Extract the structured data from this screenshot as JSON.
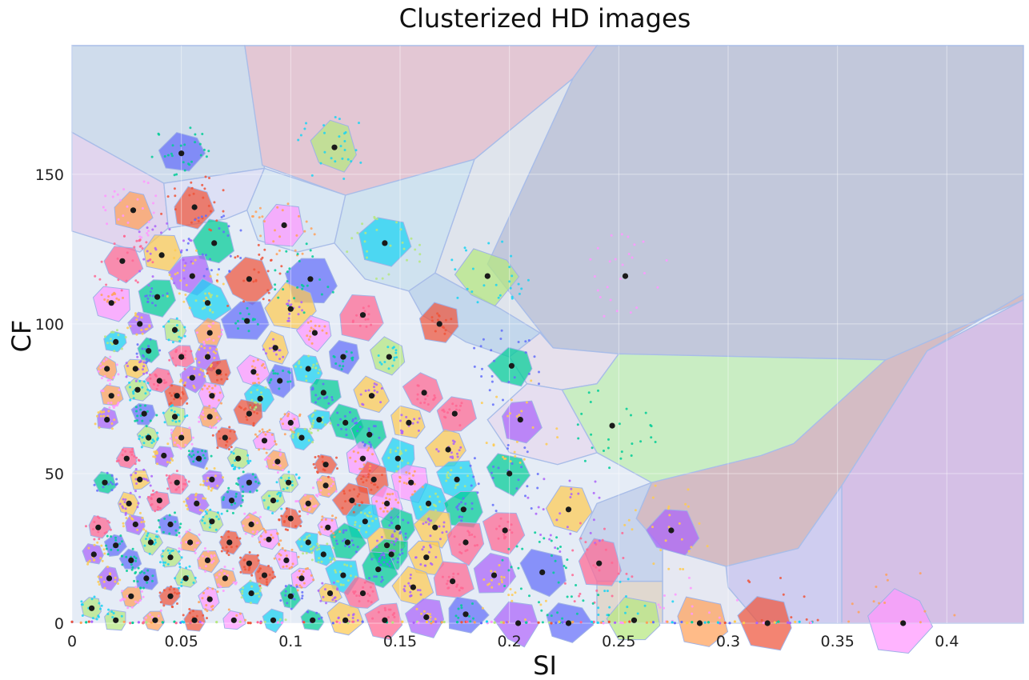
{
  "chart_data": {
    "type": "scatter",
    "title": "Clusterized HD images",
    "xlabel": "SI",
    "ylabel": "CF",
    "xlim": [
      0,
      0.435
    ],
    "ylim": [
      0,
      193
    ],
    "x_ticks": [
      0,
      0.05,
      0.1,
      0.15,
      0.2,
      0.25,
      0.3,
      0.35,
      0.4
    ],
    "x_tick_labels": [
      "0",
      "0.05",
      "0.1",
      "0.15",
      "0.2",
      "0.25",
      "0.3",
      "0.35",
      "0.4"
    ],
    "y_ticks": [
      0,
      50,
      100,
      150
    ],
    "y_tick_labels": [
      "0",
      "50",
      "100",
      "150"
    ],
    "grid": true,
    "legend": "none",
    "centroids": [
      [
        0.05,
        157
      ],
      [
        0.12,
        159
      ],
      [
        0.028,
        138
      ],
      [
        0.056,
        139
      ],
      [
        0.097,
        133
      ],
      [
        0.143,
        127
      ],
      [
        0.065,
        127
      ],
      [
        0.041,
        123
      ],
      [
        0.023,
        121
      ],
      [
        0.055,
        116
      ],
      [
        0.109,
        115
      ],
      [
        0.19,
        116
      ],
      [
        0.253,
        116
      ],
      [
        0.081,
        115
      ],
      [
        0.018,
        107
      ],
      [
        0.062,
        107
      ],
      [
        0.039,
        109
      ],
      [
        0.1,
        105
      ],
      [
        0.133,
        103
      ],
      [
        0.031,
        100
      ],
      [
        0.08,
        101
      ],
      [
        0.047,
        98
      ],
      [
        0.063,
        97
      ],
      [
        0.168,
        100
      ],
      [
        0.111,
        97
      ],
      [
        0.02,
        94
      ],
      [
        0.035,
        91
      ],
      [
        0.093,
        92
      ],
      [
        0.05,
        89
      ],
      [
        0.062,
        89
      ],
      [
        0.124,
        89
      ],
      [
        0.145,
        89
      ],
      [
        0.016,
        85
      ],
      [
        0.067,
        84
      ],
      [
        0.083,
        84
      ],
      [
        0.108,
        85
      ],
      [
        0.201,
        86
      ],
      [
        0.029,
        85
      ],
      [
        0.04,
        81
      ],
      [
        0.055,
        82
      ],
      [
        0.095,
        81
      ],
      [
        0.03,
        78
      ],
      [
        0.018,
        76
      ],
      [
        0.048,
        76
      ],
      [
        0.064,
        76
      ],
      [
        0.086,
        75
      ],
      [
        0.115,
        77
      ],
      [
        0.137,
        76
      ],
      [
        0.161,
        77
      ],
      [
        0.016,
        68
      ],
      [
        0.033,
        70
      ],
      [
        0.047,
        69
      ],
      [
        0.063,
        69
      ],
      [
        0.081,
        70
      ],
      [
        0.1,
        67
      ],
      [
        0.113,
        68
      ],
      [
        0.125,
        67
      ],
      [
        0.154,
        67
      ],
      [
        0.175,
        70
      ],
      [
        0.205,
        68
      ],
      [
        0.247,
        66
      ],
      [
        0.035,
        62
      ],
      [
        0.05,
        62
      ],
      [
        0.07,
        62
      ],
      [
        0.088,
        61
      ],
      [
        0.105,
        62
      ],
      [
        0.136,
        63
      ],
      [
        0.172,
        58
      ],
      [
        0.025,
        55
      ],
      [
        0.042,
        56
      ],
      [
        0.058,
        55
      ],
      [
        0.076,
        55
      ],
      [
        0.094,
        54
      ],
      [
        0.116,
        53
      ],
      [
        0.133,
        55
      ],
      [
        0.149,
        55
      ],
      [
        0.015,
        47
      ],
      [
        0.031,
        48
      ],
      [
        0.048,
        47
      ],
      [
        0.064,
        48
      ],
      [
        0.081,
        47
      ],
      [
        0.099,
        47
      ],
      [
        0.116,
        46
      ],
      [
        0.138,
        48
      ],
      [
        0.155,
        47
      ],
      [
        0.176,
        48
      ],
      [
        0.2,
        50
      ],
      [
        0.026,
        40
      ],
      [
        0.04,
        41
      ],
      [
        0.057,
        40
      ],
      [
        0.073,
        41
      ],
      [
        0.092,
        41
      ],
      [
        0.108,
        40
      ],
      [
        0.128,
        41
      ],
      [
        0.144,
        40
      ],
      [
        0.163,
        40
      ],
      [
        0.179,
        38
      ],
      [
        0.227,
        38
      ],
      [
        0.012,
        32
      ],
      [
        0.029,
        33
      ],
      [
        0.045,
        33
      ],
      [
        0.064,
        34
      ],
      [
        0.082,
        33
      ],
      [
        0.1,
        35
      ],
      [
        0.117,
        32
      ],
      [
        0.134,
        34
      ],
      [
        0.149,
        32
      ],
      [
        0.166,
        32
      ],
      [
        0.198,
        31
      ],
      [
        0.274,
        31
      ],
      [
        0.02,
        26
      ],
      [
        0.036,
        27
      ],
      [
        0.054,
        27
      ],
      [
        0.072,
        27
      ],
      [
        0.09,
        28
      ],
      [
        0.108,
        27
      ],
      [
        0.126,
        27
      ],
      [
        0.144,
        26
      ],
      [
        0.18,
        27
      ],
      [
        0.01,
        23
      ],
      [
        0.027,
        21
      ],
      [
        0.045,
        22
      ],
      [
        0.062,
        21
      ],
      [
        0.081,
        20
      ],
      [
        0.098,
        21
      ],
      [
        0.115,
        23
      ],
      [
        0.146,
        23
      ],
      [
        0.162,
        22
      ],
      [
        0.241,
        20
      ],
      [
        0.017,
        15
      ],
      [
        0.034,
        15
      ],
      [
        0.052,
        15
      ],
      [
        0.07,
        15
      ],
      [
        0.088,
        16
      ],
      [
        0.105,
        15
      ],
      [
        0.124,
        16
      ],
      [
        0.14,
        18
      ],
      [
        0.156,
        12
      ],
      [
        0.174,
        14
      ],
      [
        0.193,
        16
      ],
      [
        0.215,
        17
      ],
      [
        0.009,
        5
      ],
      [
        0.027,
        9
      ],
      [
        0.045,
        9
      ],
      [
        0.063,
        8
      ],
      [
        0.082,
        10
      ],
      [
        0.1,
        9
      ],
      [
        0.118,
        10
      ],
      [
        0.133,
        10
      ],
      [
        0.162,
        2
      ],
      [
        0.18,
        3
      ],
      [
        0.02,
        1
      ],
      [
        0.038,
        1
      ],
      [
        0.056,
        1
      ],
      [
        0.074,
        1
      ],
      [
        0.092,
        1
      ],
      [
        0.11,
        1
      ],
      [
        0.125,
        1
      ],
      [
        0.143,
        1
      ],
      [
        0.204,
        0
      ],
      [
        0.227,
        0
      ],
      [
        0.257,
        1
      ],
      [
        0.287,
        0
      ],
      [
        0.318,
        0
      ],
      [
        0.38,
        0
      ]
    ],
    "regions": [
      {
        "fill": "#cfdcec",
        "points": [
          [
            0,
            193
          ],
          [
            0.079,
            193
          ],
          [
            0.088,
            152
          ],
          [
            0.042,
            147
          ],
          [
            0,
            164
          ]
        ]
      },
      {
        "fill": "#e3c7d4",
        "points": [
          [
            0.079,
            193
          ],
          [
            0.24,
            193
          ],
          [
            0.229,
            182
          ],
          [
            0.184,
            155
          ],
          [
            0.125,
            143
          ],
          [
            0.087,
            153
          ]
        ]
      },
      {
        "fill": "#c2c8db",
        "points": [
          [
            0.24,
            193
          ],
          [
            0.435,
            193
          ],
          [
            0.435,
            110
          ],
          [
            0.391,
            91
          ],
          [
            0.372,
            88
          ],
          [
            0.25,
            90
          ],
          [
            0.22,
            92
          ],
          [
            0.19,
            120
          ],
          [
            0.229,
            182
          ]
        ]
      },
      {
        "fill": "#dfe4ec",
        "points": [
          [
            0.229,
            182
          ],
          [
            0.19,
            120
          ],
          [
            0.22,
            92
          ],
          [
            0.196,
            105
          ],
          [
            0.176,
            113
          ],
          [
            0.166,
            117
          ],
          [
            0.184,
            155
          ]
        ]
      },
      {
        "fill": "#cfe2ef",
        "points": [
          [
            0.125,
            143
          ],
          [
            0.184,
            155
          ],
          [
            0.166,
            117
          ],
          [
            0.154,
            111
          ],
          [
            0.134,
            115
          ],
          [
            0.12,
            127
          ]
        ]
      },
      {
        "fill": "#e1d5ee",
        "points": [
          [
            0,
            164
          ],
          [
            0.042,
            147
          ],
          [
            0.044,
            132
          ],
          [
            0.031,
            124
          ],
          [
            0,
            131
          ]
        ]
      },
      {
        "fill": "#dde0f5",
        "points": [
          [
            0.042,
            147
          ],
          [
            0.088,
            152
          ],
          [
            0.08,
            138
          ],
          [
            0.07,
            135
          ],
          [
            0.044,
            132
          ]
        ]
      },
      {
        "fill": "#d8e6f3",
        "points": [
          [
            0.088,
            152
          ],
          [
            0.125,
            143
          ],
          [
            0.12,
            127
          ],
          [
            0.103,
            124
          ],
          [
            0.085,
            128
          ],
          [
            0.08,
            138
          ]
        ]
      },
      {
        "fill": "#c3d7ec",
        "points": [
          [
            0.166,
            117
          ],
          [
            0.176,
            113
          ],
          [
            0.196,
            105
          ],
          [
            0.214,
            97
          ],
          [
            0.2,
            89
          ],
          [
            0.18,
            94
          ],
          [
            0.16,
            103
          ],
          [
            0.154,
            111
          ]
        ]
      },
      {
        "fill": "#e6e0ec",
        "points": [
          [
            0.214,
            97
          ],
          [
            0.22,
            92
          ],
          [
            0.25,
            90
          ],
          [
            0.24,
            80
          ],
          [
            0.224,
            78
          ],
          [
            0.208,
            80
          ],
          [
            0.2,
            89
          ]
        ]
      },
      {
        "fill": "#c9edc3",
        "points": [
          [
            0.25,
            90
          ],
          [
            0.372,
            88
          ],
          [
            0.33,
            60
          ],
          [
            0.315,
            56
          ],
          [
            0.265,
            47
          ],
          [
            0.24,
            57
          ],
          [
            0.224,
            78
          ],
          [
            0.24,
            80
          ]
        ]
      },
      {
        "fill": "#d4bcc4",
        "points": [
          [
            0.391,
            91
          ],
          [
            0.435,
            110
          ],
          [
            0.435,
            108
          ],
          [
            0.372,
            88
          ],
          [
            0.33,
            60
          ],
          [
            0.315,
            56
          ],
          [
            0.265,
            47
          ],
          [
            0.258,
            35
          ],
          [
            0.27,
            25
          ],
          [
            0.299,
            19
          ],
          [
            0.332,
            25
          ],
          [
            0.352,
            46
          ],
          [
            0.391,
            91
          ]
        ]
      },
      {
        "fill": "#cfcdf0",
        "points": [
          [
            0.299,
            19
          ],
          [
            0.332,
            25
          ],
          [
            0.352,
            46
          ],
          [
            0.352,
            0
          ],
          [
            0.314,
            0
          ],
          [
            0.3,
            12
          ]
        ]
      },
      {
        "fill": "#d5c0e6",
        "points": [
          [
            0.352,
            46
          ],
          [
            0.391,
            91
          ],
          [
            0.435,
            108
          ],
          [
            0.435,
            0
          ],
          [
            0.352,
            0
          ]
        ]
      },
      {
        "fill": "#e6e8f2",
        "points": [
          [
            0.27,
            25
          ],
          [
            0.299,
            19
          ],
          [
            0.3,
            12
          ],
          [
            0.314,
            0
          ],
          [
            0.27,
            0
          ],
          [
            0.27,
            14
          ]
        ]
      },
      {
        "fill": "#e0d8cf",
        "points": [
          [
            0.24,
            14
          ],
          [
            0.27,
            14
          ],
          [
            0.27,
            0
          ],
          [
            0.24,
            0
          ]
        ]
      },
      {
        "fill": "#c8d4ec",
        "points": [
          [
            0.24,
            40
          ],
          [
            0.265,
            47
          ],
          [
            0.258,
            35
          ],
          [
            0.27,
            25
          ],
          [
            0.27,
            14
          ],
          [
            0.24,
            14
          ],
          [
            0.232,
            28
          ]
        ]
      },
      {
        "fill": "#e6def0",
        "points": [
          [
            0.208,
            80
          ],
          [
            0.224,
            78
          ],
          [
            0.24,
            57
          ],
          [
            0.222,
            53
          ],
          [
            0.2,
            57
          ],
          [
            0.19,
            68
          ]
        ]
      }
    ]
  }
}
